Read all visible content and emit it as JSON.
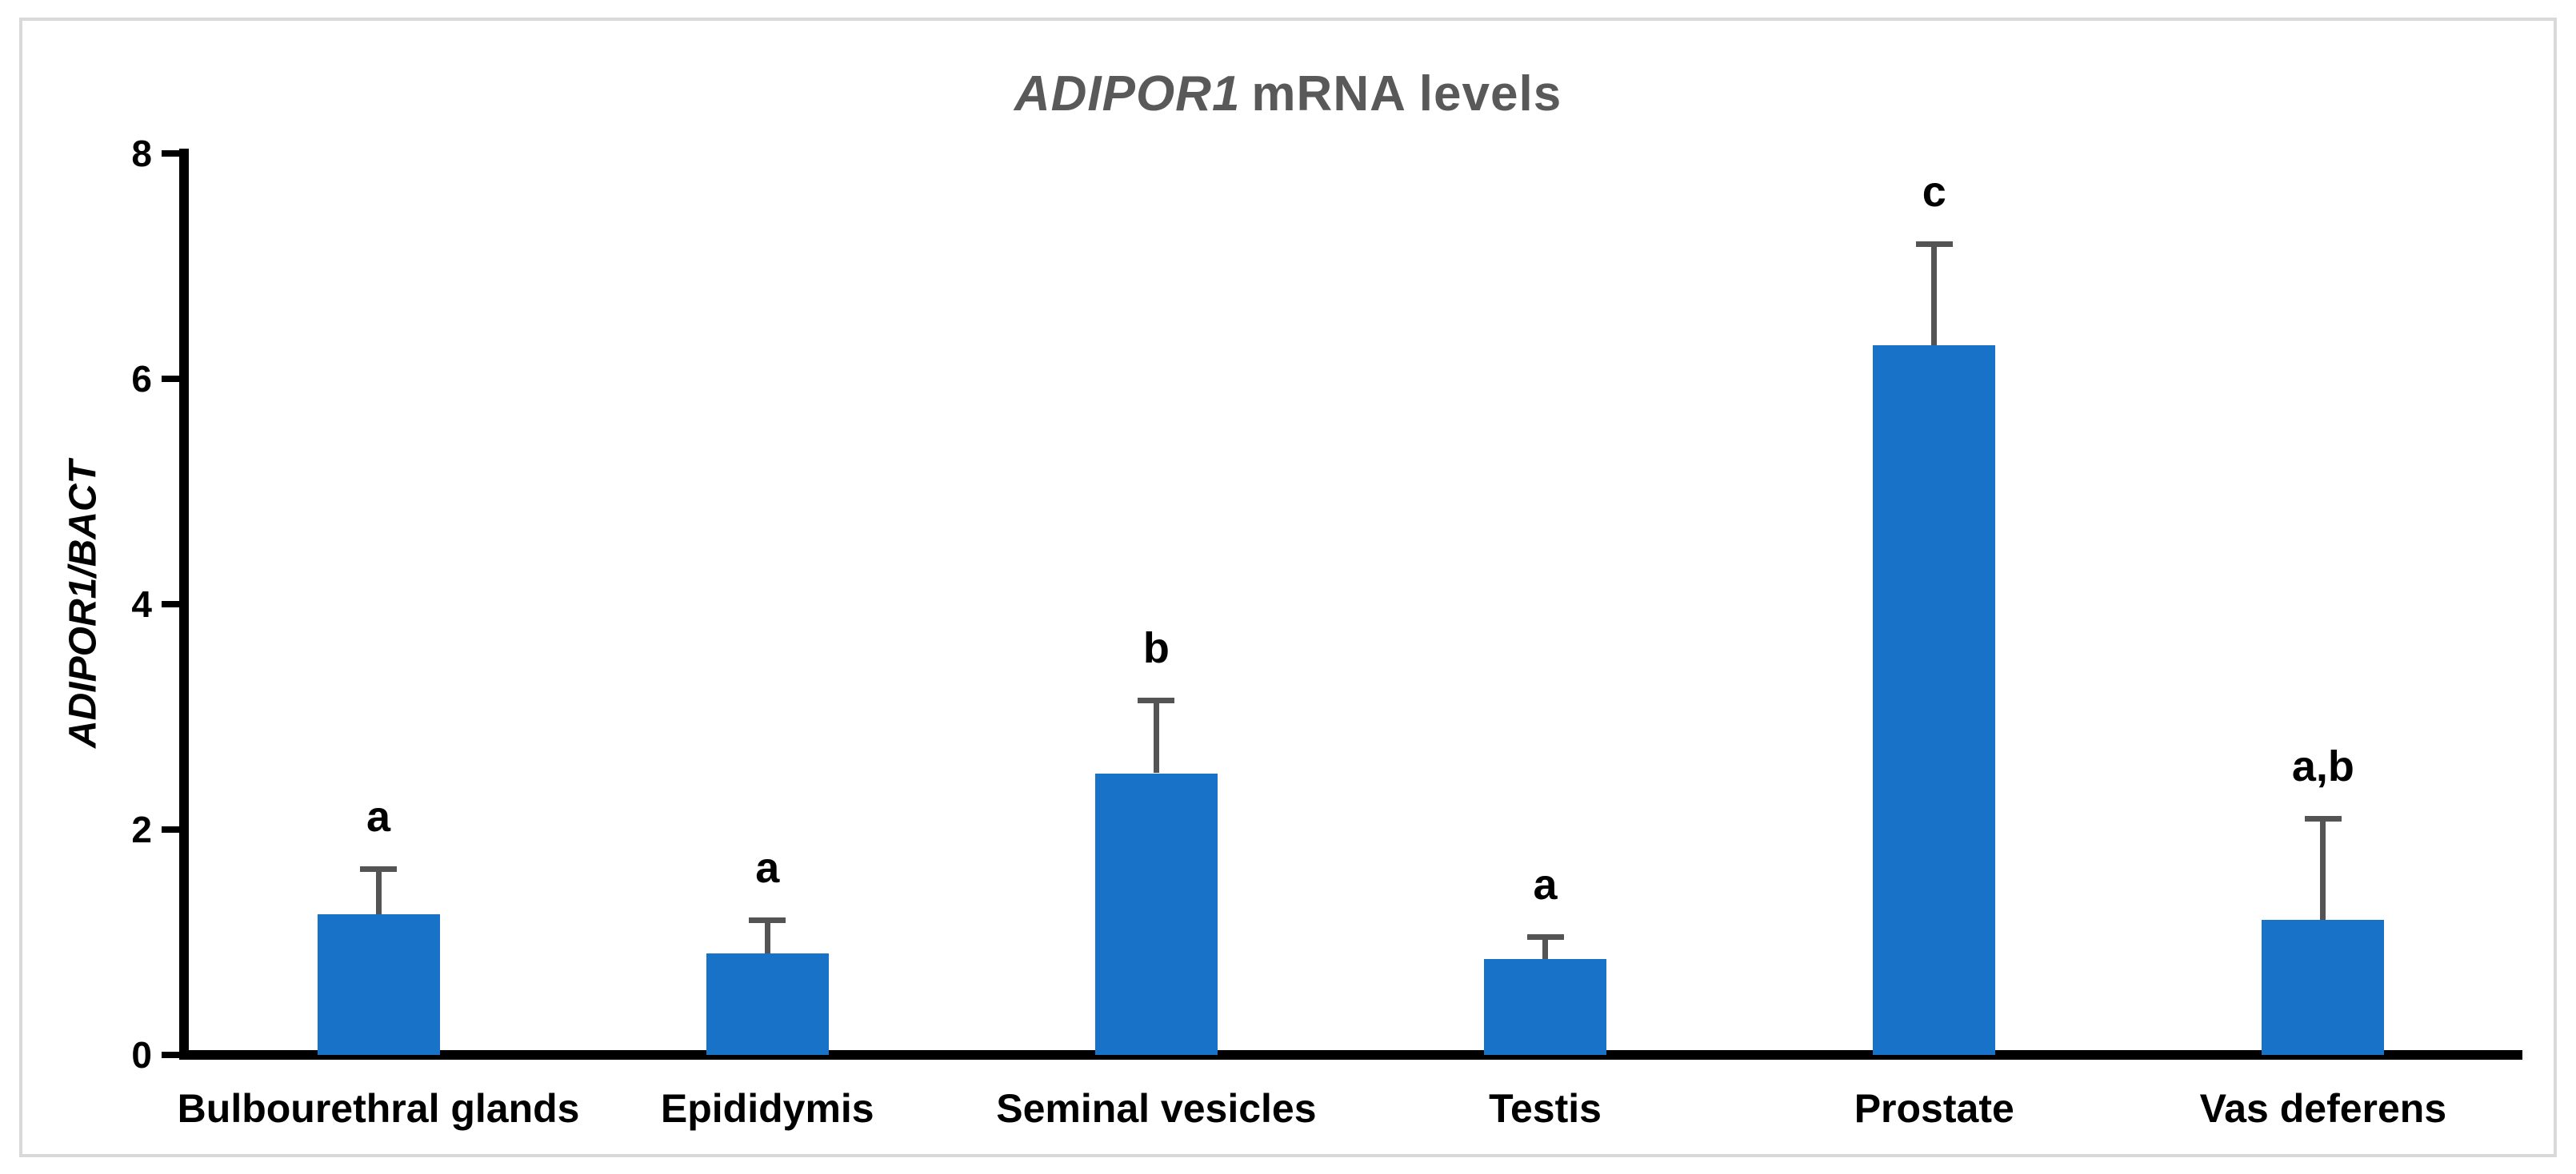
{
  "chart_data": {
    "type": "bar",
    "title": {
      "italic_part": "ADIPOR1",
      "regular_part": "mRNA levels",
      "full_text": "ADIPOR1 mRNA levels"
    },
    "ylabel": "ADIPOR1/BACT",
    "xlabel": "",
    "categories": [
      "Bulbourethral glands",
      "Epididymis",
      "Seminal vesicles",
      "Testis",
      "Prostate",
      "Vas deferens"
    ],
    "values": [
      1.25,
      0.9,
      2.5,
      0.85,
      6.3,
      1.2
    ],
    "errors_plus": [
      0.4,
      0.3,
      0.65,
      0.2,
      0.9,
      0.9
    ],
    "significance_letters": [
      "a",
      "a",
      "b",
      "a",
      "c",
      "a,b"
    ],
    "yticks": [
      0,
      2,
      4,
      6,
      8
    ],
    "ylim": [
      0,
      8
    ],
    "grid": false,
    "legend": false,
    "colors": {
      "bar": "#1772C8",
      "error_bar": "#545454",
      "title": "#595959",
      "axis": "#000000",
      "tick_text": "#000000",
      "category_text": "#000000",
      "frame_border": "#D9D9D9",
      "background": "#FFFFFF"
    }
  }
}
